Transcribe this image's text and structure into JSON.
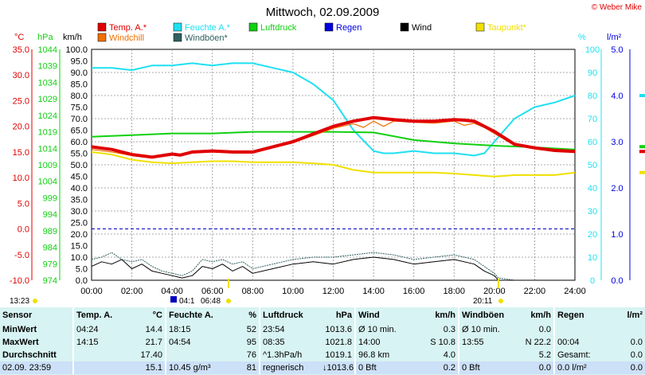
{
  "title": "Mittwoch, 02.09.2009",
  "copyright": "© Weber Mike",
  "colors": {
    "temp": "#e00000",
    "humidity": "#1fe0f0",
    "pressure": "#10d010",
    "rain": "#0000e0",
    "wind": "#000000",
    "dew": "#f0e000",
    "windchill": "#f07000",
    "gust": "#306060",
    "grid": "#909090",
    "table_bg": "#d8f3f3",
    "table_last": "#cce0f7"
  },
  "legend": [
    {
      "label": "Temp. A.*",
      "color": "#e00000"
    },
    {
      "label": "Feuchte A.*",
      "color": "#1fe0f0"
    },
    {
      "label": "Luftdruck",
      "color": "#10d010"
    },
    {
      "label": "Regen",
      "color": "#0000e0"
    },
    {
      "label": "Wind",
      "color": "#000000"
    },
    {
      "label": "Taupunkt*",
      "color": "#f0e000"
    },
    {
      "label": "Windchill",
      "color": "#f07000"
    },
    {
      "label": "Windböen*",
      "color": "#306060"
    }
  ],
  "chart_data": {
    "type": "line",
    "title": "Mittwoch, 02.09.2009",
    "x_ticks": [
      "00:00",
      "02:00",
      "04:00",
      "06:00",
      "08:00",
      "10:00",
      "12:00",
      "14:00",
      "16:00",
      "18:00",
      "20:00",
      "22:00",
      "24:00"
    ],
    "x_range_hours": [
      0,
      24
    ],
    "axes": {
      "temp": {
        "unit": "°C",
        "min": -10,
        "max": 35,
        "ticks": [
          "35.0",
          "30.0",
          "25.0",
          "20.0",
          "15.0",
          "10.0",
          "5.0",
          "0.0",
          "-5.0",
          "-10.0"
        ]
      },
      "pressure": {
        "unit": "hPa",
        "min": 974,
        "max": 1044,
        "ticks": [
          "1044",
          "1039",
          "1034",
          "1029",
          "1024",
          "1019",
          "1014",
          "1009",
          "1004",
          "999",
          "994",
          "989",
          "984",
          "979",
          "974"
        ]
      },
      "wind": {
        "unit": "km/h",
        "min": 0,
        "max": 100,
        "ticks": [
          "100.0",
          "95.0",
          "90.0",
          "85.0",
          "80.0",
          "75.0",
          "70.0",
          "65.0",
          "60.0",
          "55.0",
          "50.0",
          "45.0",
          "40.0",
          "35.0",
          "30.0",
          "25.0",
          "20.0",
          "15.0",
          "10.0",
          "5.0",
          "0.0"
        ]
      },
      "humidity": {
        "unit": "%",
        "min": 0,
        "max": 100,
        "ticks": [
          "100",
          "90",
          "80",
          "70",
          "60",
          "50",
          "40",
          "30",
          "20",
          "10",
          "0"
        ]
      },
      "rain": {
        "unit": "l/m²",
        "min": 0,
        "max": 5,
        "ticks": [
          "5.0",
          "4.0",
          "3.0",
          "2.0",
          "1.0",
          "0.0"
        ]
      }
    },
    "series": [
      {
        "name": "Temp. A.*",
        "axis": "temp",
        "x": [
          0,
          1,
          2,
          3,
          4,
          4.4,
          5,
          6,
          7,
          8,
          9,
          10,
          11,
          12,
          13,
          14,
          14.25,
          15,
          16,
          17,
          18,
          18.5,
          19,
          20,
          21,
          22,
          23,
          24
        ],
        "y": [
          16.0,
          15.5,
          14.5,
          14.0,
          14.6,
          14.4,
          15.0,
          15.2,
          15.0,
          15.0,
          16.0,
          17.0,
          18.5,
          20.0,
          21.0,
          21.7,
          21.6,
          21.3,
          21.0,
          21.0,
          21.3,
          21.2,
          21.0,
          19.0,
          16.5,
          15.8,
          15.3,
          15.1
        ]
      },
      {
        "name": "Feuchte A.*",
        "axis": "humidity",
        "x": [
          0,
          1,
          2,
          3,
          4,
          5,
          6,
          7,
          8,
          9,
          10,
          11,
          12,
          13,
          14,
          14.5,
          15,
          16,
          17,
          18,
          19,
          19.5,
          20,
          21,
          22,
          23,
          24
        ],
        "y": [
          92,
          92,
          91,
          93,
          93,
          94,
          93,
          94,
          94,
          92,
          90,
          85,
          78,
          65,
          56,
          55,
          55,
          56,
          55,
          55,
          54,
          55,
          60,
          70,
          75,
          77,
          80
        ]
      },
      {
        "name": "Luftdruck",
        "axis": "pressure",
        "x": [
          0,
          2,
          4,
          6,
          8,
          10,
          12,
          14,
          16,
          18,
          20,
          22,
          24
        ],
        "y": [
          1017.5,
          1018.0,
          1018.5,
          1018.5,
          1019.0,
          1019.0,
          1019.0,
          1018.8,
          1016.5,
          1015.5,
          1014.8,
          1014.3,
          1013.6
        ]
      },
      {
        "name": "Taupunkt*",
        "axis": "temp",
        "x": [
          0,
          1,
          2,
          3,
          4,
          5,
          6,
          7,
          8,
          9,
          10,
          11,
          12,
          13,
          14,
          15,
          16,
          17,
          18,
          19,
          20,
          21,
          22,
          23,
          24
        ],
        "y": [
          15.0,
          14.5,
          13.5,
          13.0,
          12.8,
          13.0,
          13.2,
          13.2,
          13.0,
          13.0,
          13.0,
          12.8,
          12.5,
          11.5,
          11.0,
          11.0,
          11.0,
          11.0,
          10.8,
          10.5,
          10.2,
          10.5,
          10.5,
          10.5,
          11.0
        ]
      },
      {
        "name": "Windchill",
        "axis": "temp",
        "x": [
          0,
          1,
          2,
          3,
          4,
          5,
          6,
          7,
          8,
          9,
          10,
          11,
          12,
          13,
          13.5,
          14,
          14.5,
          15,
          16,
          17,
          18,
          18.5,
          19,
          19.5,
          20,
          21,
          22,
          23,
          24
        ],
        "y": [
          15.5,
          15.0,
          14.3,
          13.8,
          14.4,
          14.8,
          15.0,
          14.8,
          14.8,
          15.8,
          16.8,
          18.2,
          19.6,
          20.5,
          19.8,
          21.0,
          20.0,
          21.0,
          20.8,
          20.6,
          21.0,
          20.2,
          20.6,
          19.8,
          18.6,
          16.3,
          15.6,
          15.1,
          15.0
        ]
      },
      {
        "name": "Wind",
        "axis": "wind",
        "x": [
          0,
          0.5,
          1,
          1.5,
          2,
          2.5,
          3,
          3.5,
          4,
          4.5,
          5,
          5.5,
          6,
          6.5,
          7,
          7.5,
          8,
          9,
          10,
          11,
          12,
          13,
          14,
          15,
          16,
          17,
          18,
          19,
          19.5,
          20,
          20.2,
          21,
          22,
          23,
          24
        ],
        "y": [
          6,
          8,
          7,
          9,
          5,
          7,
          4,
          3,
          2,
          1,
          2,
          6,
          5,
          7,
          4,
          6,
          3,
          5,
          7,
          8,
          7,
          9,
          10,
          9,
          7,
          8,
          9,
          7,
          4,
          2,
          0,
          0,
          0,
          0,
          0
        ]
      },
      {
        "name": "Windböen*",
        "axis": "wind",
        "x": [
          0,
          0.5,
          1,
          1.5,
          2,
          2.5,
          3,
          3.5,
          4,
          4.5,
          5,
          5.5,
          6,
          6.5,
          7,
          7.5,
          8,
          9,
          10,
          11,
          12,
          13,
          14,
          15,
          16,
          17,
          18,
          19,
          19.5,
          20,
          20.2,
          21,
          22,
          23,
          24
        ],
        "y": [
          9,
          10,
          12,
          9,
          8,
          9,
          6,
          4,
          3,
          2,
          4,
          9,
          8,
          9,
          7,
          8,
          5,
          7,
          9,
          10,
          10,
          11,
          12,
          11,
          9,
          10,
          11,
          9,
          6,
          3,
          1,
          0,
          0,
          0,
          0
        ]
      }
    ],
    "markers": {
      "sunrise": "06:48",
      "sunset": "20:11",
      "moonrise": "04:1",
      "moonset": "13:23"
    }
  },
  "table": {
    "headers": [
      "Sensor",
      "Temp. A.",
      "°C",
      "Feuchte A.",
      "%",
      "Luftdruck",
      "hPa",
      "Wind",
      "km/h",
      "Windböen",
      "km/h",
      "Regen",
      "l/m²"
    ],
    "rows": [
      [
        "MinWert",
        "04:24",
        "14.4",
        "18:15",
        "52",
        "23:54",
        "1013.6",
        "Ø 10 min.",
        "0.3",
        "Ø 10 min.",
        "0.0",
        "",
        ""
      ],
      [
        "MaxWert",
        "14:15",
        "21.7",
        "04:54",
        "95",
        "08:35",
        "1021.8",
        "14:00",
        "S 10.8",
        "13:55",
        "N 22.2",
        "00:04",
        "0.0"
      ],
      [
        "Durchschnitt",
        "",
        "17.40",
        "",
        "76",
        "^1.3hPa/h",
        "1019.1",
        "96.8 km",
        "4.0",
        "",
        "5.2",
        "Gesamt:",
        "0.0"
      ],
      [
        "02.09.  23:59",
        "",
        "15.1",
        "10.45 g/m³",
        "81",
        "regnerisch",
        "↓1013.6",
        "0 Bft",
        "0.2",
        "0 Bft",
        "0.0",
        "0.0 l/m²",
        "0.0"
      ]
    ]
  }
}
